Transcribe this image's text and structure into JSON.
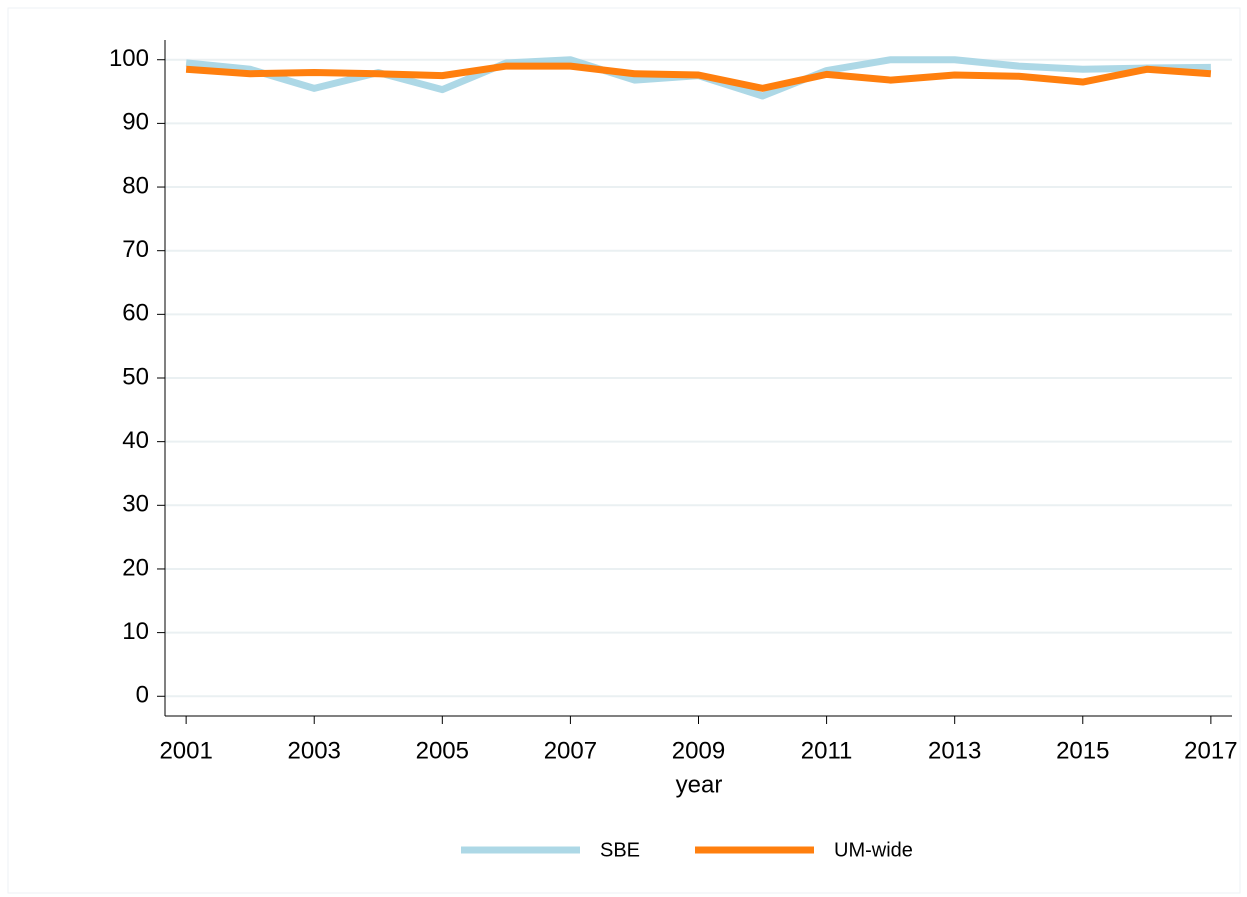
{
  "chart_data": {
    "type": "line",
    "x_label": "year",
    "x": [
      2001,
      2002,
      2003,
      2004,
      2005,
      2006,
      2007,
      2008,
      2009,
      2010,
      2011,
      2012,
      2013,
      2014,
      2015,
      2016,
      2017
    ],
    "series": [
      {
        "name": "SBE",
        "color": "#add8e6",
        "values": [
          99.5,
          98.5,
          95.5,
          98,
          95.3,
          99.5,
          100,
          96.8,
          97.5,
          94.3,
          98.3,
          100,
          100,
          99,
          98.5,
          98.7,
          98.8
        ]
      },
      {
        "name": "UM-wide",
        "color": "#ff7f0e",
        "values": [
          98.5,
          97.8,
          98,
          97.8,
          97.5,
          99,
          99,
          97.8,
          97.6,
          95.5,
          97.7,
          96.8,
          97.6,
          97.4,
          96.5,
          98.5,
          97.8
        ]
      }
    ],
    "xlim": [
      2000.67,
      2017.33
    ],
    "xticks": [
      2001,
      2003,
      2005,
      2007,
      2009,
      2011,
      2013,
      2015,
      2017
    ],
    "ylim": [
      -3.1,
      103.1
    ],
    "yticks": [
      0,
      10,
      20,
      30,
      40,
      50,
      60,
      70,
      80,
      90,
      100
    ],
    "grid": true,
    "legend": "bottom"
  }
}
